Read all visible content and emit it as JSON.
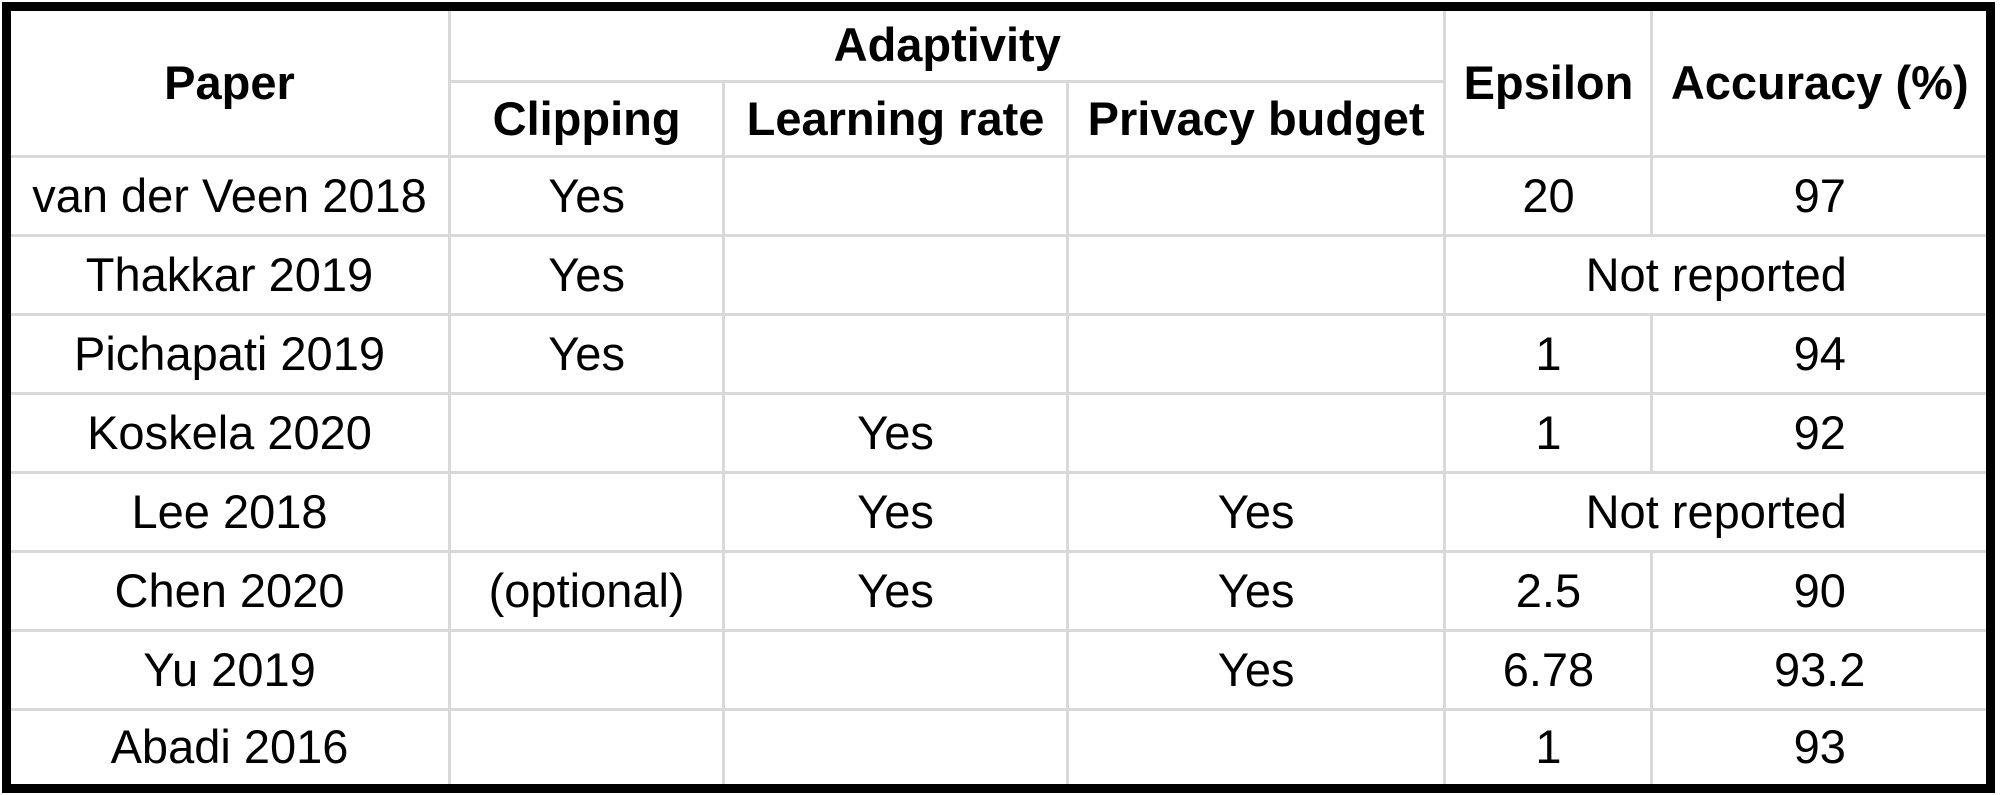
{
  "table": {
    "header": {
      "paper": "Paper",
      "adaptivity": "Adaptivity",
      "clipping": "Clipping",
      "learning_rate": "Learning rate",
      "privacy_budget": "Privacy budget",
      "epsilon": "Epsilon",
      "accuracy": "Accuracy (%)"
    },
    "rows": [
      {
        "paper": "van der Veen 2018",
        "clipping": "Yes",
        "learning_rate": "",
        "privacy_budget": "",
        "epsilon": "20",
        "accuracy": "97"
      },
      {
        "paper": "Thakkar 2019",
        "clipping": "Yes",
        "learning_rate": "",
        "privacy_budget": "",
        "result": "Not reported"
      },
      {
        "paper": "Pichapati 2019",
        "clipping": "Yes",
        "learning_rate": "",
        "privacy_budget": "",
        "epsilon": "1",
        "accuracy": "94"
      },
      {
        "paper": "Koskela 2020",
        "clipping": "",
        "learning_rate": "Yes",
        "privacy_budget": "",
        "epsilon": "1",
        "accuracy": "92"
      },
      {
        "paper": "Lee 2018",
        "clipping": "",
        "learning_rate": "Yes",
        "privacy_budget": "Yes",
        "result": "Not reported"
      },
      {
        "paper": "Chen 2020",
        "clipping": "(optional)",
        "learning_rate": "Yes",
        "privacy_budget": "Yes",
        "epsilon": "2.5",
        "accuracy": "90"
      },
      {
        "paper": "Yu 2019",
        "clipping": "",
        "learning_rate": "",
        "privacy_budget": "Yes",
        "epsilon": "6.78",
        "accuracy": "93.2"
      },
      {
        "paper": "Abadi 2016",
        "clipping": "",
        "learning_rate": "",
        "privacy_budget": "",
        "epsilon": "1",
        "accuracy": "93"
      }
    ]
  },
  "colors": {
    "outer_border": "#000000",
    "grid_line": "#d9d9d9",
    "cell_background": "#ffffff",
    "text": "#000000"
  }
}
